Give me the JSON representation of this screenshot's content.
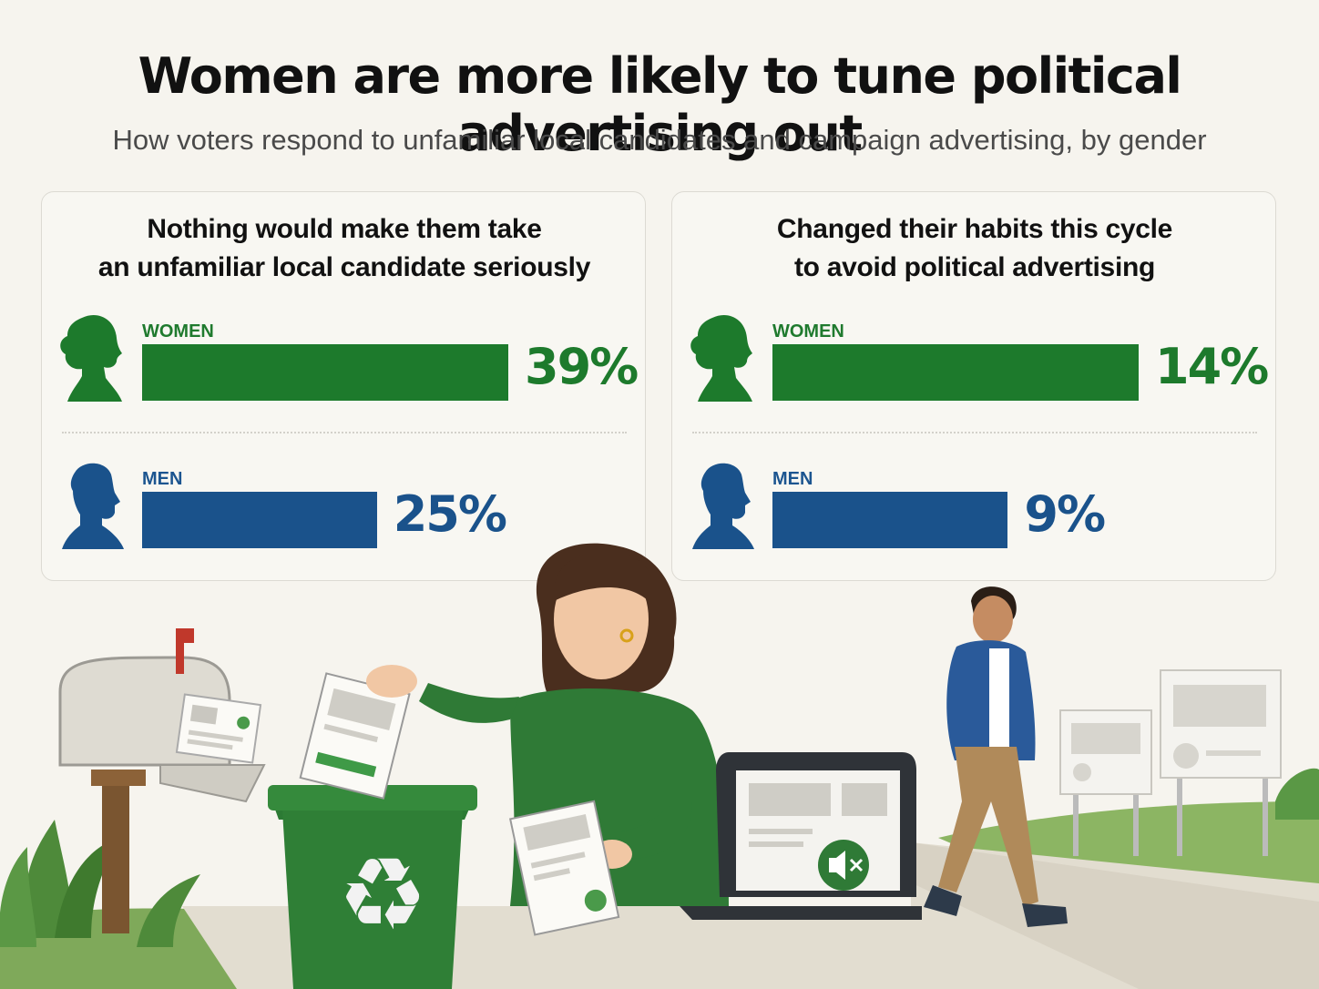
{
  "title": "Women are more likely to tune political advertising out",
  "subtitle": "How voters respond to unfamiliar local candidates and campaign advertising, by gender",
  "colors": {
    "women": "#1d7a2c",
    "men": "#1a528b",
    "background": "#f6f4ee"
  },
  "icons": [
    "woman-silhouette-icon",
    "man-silhouette-icon",
    "recycle-icon",
    "mute-icon"
  ],
  "chart_data": [
    {
      "type": "bar",
      "orientation": "horizontal",
      "title": "Nothing would make them take\nan unfamiliar local candidate seriously",
      "categories": [
        "WOMEN",
        "MEN"
      ],
      "values": [
        39,
        25
      ],
      "labels": [
        "39%",
        "25%"
      ],
      "unit": "%",
      "xlim": [
        0,
        39
      ]
    },
    {
      "type": "bar",
      "orientation": "horizontal",
      "title": "Changed their habits this cycle\nto avoid political advertising",
      "categories": [
        "WOMEN",
        "MEN"
      ],
      "values": [
        14,
        9
      ],
      "labels": [
        "14%",
        "9%"
      ],
      "unit": "%",
      "xlim": [
        0,
        14
      ]
    }
  ]
}
